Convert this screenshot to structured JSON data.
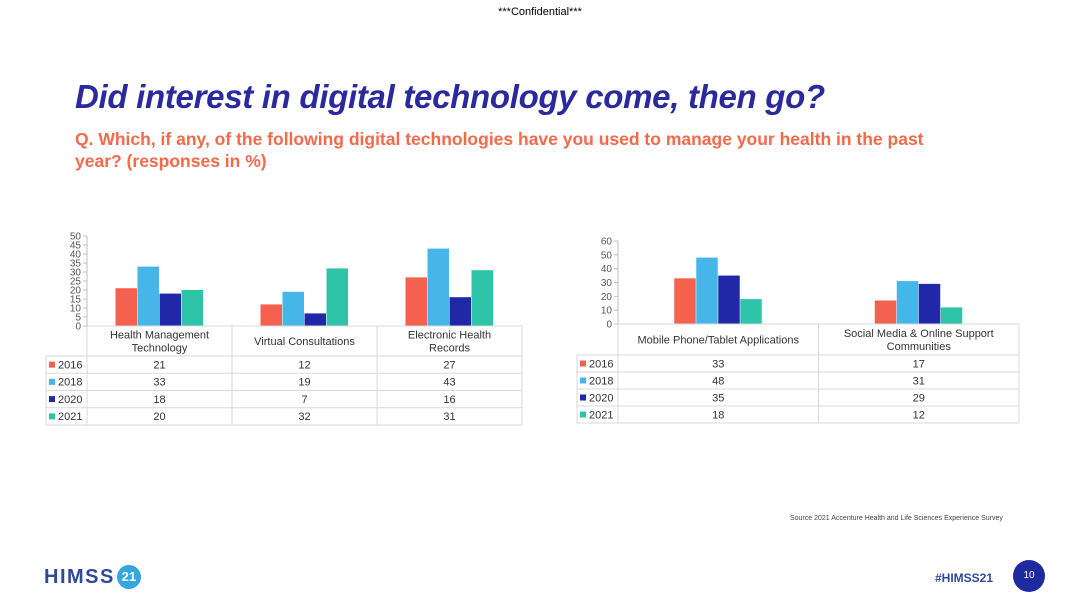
{
  "header": {
    "confidential": "***Confidential***"
  },
  "slide": {
    "title": "Did interest in digital technology come, then go?",
    "question": "Q. Which, if any, of the following digital technologies have you used to manage your health in the past year? (responses in %)",
    "source": "Source 2021 Accenture Health and Life Sciences Experience Survey"
  },
  "footer": {
    "logo_text": "HIMSS",
    "logo_badge": "21",
    "hashtag": "#HIMSS21",
    "page_number": "10"
  },
  "colors": {
    "2016": "#f4624f",
    "2018": "#46b6e8",
    "2020": "#2128a8",
    "2021": "#2ec4a8"
  },
  "chart_data": [
    {
      "type": "bar",
      "categories": [
        [
          "Health Management",
          "Technology"
        ],
        [
          "Virtual Consultations"
        ],
        [
          "Electronic Health",
          "Records"
        ]
      ],
      "series": [
        {
          "name": "2016",
          "values": [
            21,
            12,
            27
          ]
        },
        {
          "name": "2018",
          "values": [
            33,
            19,
            43
          ]
        },
        {
          "name": "2020",
          "values": [
            18,
            7,
            16
          ]
        },
        {
          "name": "2021",
          "values": [
            20,
            32,
            31
          ]
        }
      ],
      "ylim": [
        0,
        50
      ],
      "yticks": [
        "0",
        "5",
        "10",
        "15",
        "20",
        "25",
        "30",
        "35",
        "40",
        "45",
        "50"
      ],
      "legend": "data table below chart"
    },
    {
      "type": "bar",
      "categories": [
        [
          "Mobile Phone/Tablet Applications"
        ],
        [
          "Social Media & Online Support",
          "Communities"
        ]
      ],
      "series": [
        {
          "name": "2016",
          "values": [
            33,
            17
          ]
        },
        {
          "name": "2018",
          "values": [
            48,
            31
          ]
        },
        {
          "name": "2020",
          "values": [
            35,
            29
          ]
        },
        {
          "name": "2021",
          "values": [
            18,
            12
          ]
        }
      ],
      "ylim": [
        0,
        60
      ],
      "yticks": [
        "0",
        "10",
        "20",
        "30",
        "40",
        "50",
        "60"
      ],
      "legend": "data table below chart"
    }
  ]
}
